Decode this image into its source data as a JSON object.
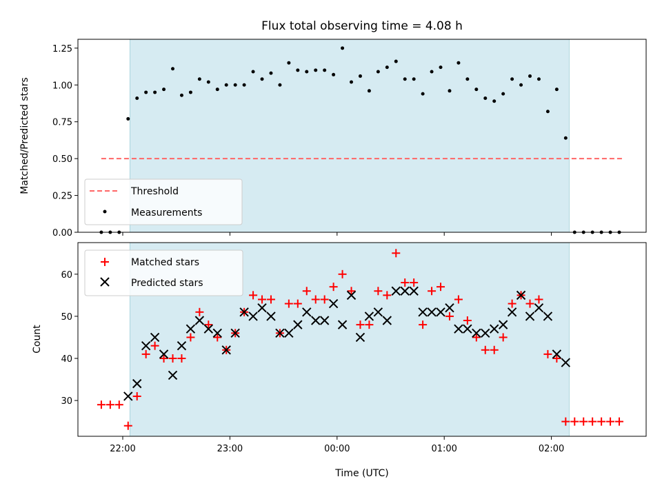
{
  "title": "Flux total observing time = 4.08 h",
  "xlabel": "Time (UTC)",
  "x_tick_labels": [
    "22:00",
    "23:00",
    "00:00",
    "01:00",
    "02:00"
  ],
  "colors": {
    "span": "#add8e6",
    "threshold": "#ff6666",
    "matched": "#ff0000",
    "predicted": "#000000",
    "measurements": "#000000"
  },
  "chart_data": [
    {
      "type": "scatter",
      "ylabel": "Matched/Predicted stars",
      "ylim": [
        0,
        1.31
      ],
      "y_ticks": [
        0.0,
        0.25,
        0.5,
        0.75,
        1.0,
        1.25
      ],
      "y_tick_labels": [
        "0.00",
        "0.25",
        "0.50",
        "0.75",
        "1.00",
        "1.25"
      ],
      "shaded_span": [
        "22:04",
        "02:10"
      ],
      "threshold": {
        "value": 0.5,
        "x_range": [
          "21:48",
          "02:40"
        ]
      },
      "legend": [
        "Threshold",
        "Measurements"
      ],
      "legend_position": "lower-left",
      "series": [
        {
          "name": "Measurements",
          "x": [
            "21:48",
            "21:53",
            "21:58",
            "22:03",
            "22:08",
            "22:13",
            "22:18",
            "22:23",
            "22:28",
            "22:33",
            "22:38",
            "22:43",
            "22:48",
            "22:53",
            "22:58",
            "23:03",
            "23:08",
            "23:13",
            "23:18",
            "23:23",
            "23:28",
            "23:33",
            "23:38",
            "23:43",
            "23:48",
            "23:53",
            "23:58",
            "00:03",
            "00:08",
            "00:13",
            "00:18",
            "00:23",
            "00:28",
            "00:33",
            "00:38",
            "00:43",
            "00:48",
            "00:53",
            "00:58",
            "01:03",
            "01:08",
            "01:13",
            "01:18",
            "01:23",
            "01:28",
            "01:33",
            "01:38",
            "01:43",
            "01:48",
            "01:53",
            "01:58",
            "02:03",
            "02:08",
            "02:13",
            "02:18",
            "02:23",
            "02:28",
            "02:33",
            "02:38"
          ],
          "y": [
            0,
            0,
            0,
            0.77,
            0.91,
            0.95,
            0.95,
            0.97,
            1.11,
            0.93,
            0.95,
            1.04,
            1.02,
            0.97,
            1.0,
            1.0,
            1.0,
            1.09,
            1.04,
            1.08,
            1.0,
            1.15,
            1.1,
            1.09,
            1.1,
            1.1,
            1.07,
            1.25,
            1.02,
            1.06,
            0.96,
            1.09,
            1.12,
            1.16,
            1.04,
            1.04,
            0.94,
            1.09,
            1.12,
            0.96,
            1.15,
            1.04,
            0.97,
            0.91,
            0.89,
            0.94,
            1.04,
            1.0,
            1.06,
            1.04,
            0.82,
            0.97,
            0.64,
            0,
            0,
            0,
            0,
            0,
            0
          ]
        }
      ]
    },
    {
      "type": "scatter",
      "ylabel": "Count",
      "ylim": [
        21.5,
        67.5
      ],
      "y_ticks": [
        30,
        40,
        50,
        60
      ],
      "y_tick_labels": [
        "30",
        "40",
        "50",
        "60"
      ],
      "shaded_span": [
        "22:04",
        "02:10"
      ],
      "legend": [
        "Matched stars",
        "Predicted stars"
      ],
      "legend_position": "upper-left",
      "series": [
        {
          "name": "Matched stars",
          "x": [
            "21:48",
            "21:53",
            "21:58",
            "22:03",
            "22:08",
            "22:13",
            "22:18",
            "22:23",
            "22:28",
            "22:33",
            "22:38",
            "22:43",
            "22:48",
            "22:53",
            "22:58",
            "23:03",
            "23:08",
            "23:13",
            "23:18",
            "23:23",
            "23:28",
            "23:33",
            "23:38",
            "23:43",
            "23:48",
            "23:53",
            "23:58",
            "00:03",
            "00:08",
            "00:13",
            "00:18",
            "00:23",
            "00:28",
            "00:33",
            "00:38",
            "00:43",
            "00:48",
            "00:53",
            "00:58",
            "01:03",
            "01:08",
            "01:13",
            "01:18",
            "01:23",
            "01:28",
            "01:33",
            "01:38",
            "01:43",
            "01:48",
            "01:53",
            "01:58",
            "02:03",
            "02:08",
            "02:13",
            "02:18",
            "02:23",
            "02:28",
            "02:33",
            "02:38"
          ],
          "y": [
            29,
            29,
            29,
            24,
            31,
            41,
            43,
            40,
            40,
            40,
            45,
            51,
            48,
            45,
            42,
            46,
            51,
            55,
            54,
            54,
            46,
            53,
            53,
            56,
            54,
            54,
            57,
            60,
            56,
            48,
            48,
            56,
            55,
            65,
            58,
            58,
            48,
            56,
            57,
            50,
            54,
            49,
            45,
            42,
            42,
            45,
            53,
            55,
            53,
            54,
            41,
            40,
            25,
            25,
            25,
            25,
            25,
            25,
            25
          ]
        },
        {
          "name": "Predicted stars",
          "x": [
            "22:03",
            "22:08",
            "22:13",
            "22:18",
            "22:23",
            "22:28",
            "22:33",
            "22:38",
            "22:43",
            "22:48",
            "22:53",
            "22:58",
            "23:03",
            "23:08",
            "23:13",
            "23:18",
            "23:23",
            "23:28",
            "23:33",
            "23:38",
            "23:43",
            "23:48",
            "23:53",
            "23:58",
            "00:03",
            "00:08",
            "00:13",
            "00:18",
            "00:23",
            "00:28",
            "00:33",
            "00:38",
            "00:43",
            "00:48",
            "00:53",
            "00:58",
            "01:03",
            "01:08",
            "01:13",
            "01:18",
            "01:23",
            "01:28",
            "01:33",
            "01:38",
            "01:43",
            "01:48",
            "01:53",
            "01:58",
            "02:03",
            "02:08"
          ],
          "y": [
            31,
            34,
            43,
            45,
            41,
            36,
            43,
            47,
            49,
            47,
            46,
            42,
            46,
            51,
            50,
            52,
            50,
            46,
            46,
            48,
            51,
            49,
            49,
            53,
            48,
            55,
            45,
            50,
            51,
            49,
            56,
            56,
            56,
            51,
            51,
            51,
            52,
            47,
            47,
            46,
            46,
            47,
            48,
            51,
            55,
            50,
            52,
            50,
            41,
            39
          ]
        }
      ]
    }
  ]
}
